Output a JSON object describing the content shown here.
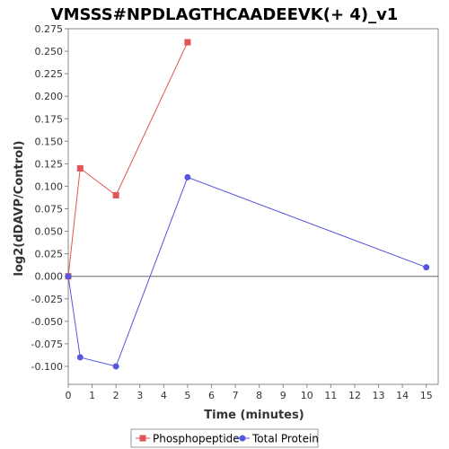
{
  "chart_data": {
    "type": "line",
    "title": "VMSSS#NPDLAGTHCAADEEVK(+ 4)_v1",
    "xlabel": "Time (minutes)",
    "ylabel": "log2(dDAVP/Control)",
    "xlim": [
      0,
      15.5
    ],
    "ylim": [
      -0.12,
      0.275
    ],
    "x_ticks": [
      "0",
      "1",
      "2",
      "3",
      "4",
      "5",
      "6",
      "7",
      "8",
      "9",
      "10",
      "11",
      "12",
      "13",
      "14",
      "15"
    ],
    "y_ticks": [
      "0.275",
      "0.250",
      "0.225",
      "0.200",
      "0.175",
      "0.150",
      "0.125",
      "0.100",
      "0.075",
      "0.050",
      "0.025",
      "0.000",
      "-0.025",
      "-0.050",
      "-0.075",
      "-0.100"
    ],
    "grid": false,
    "zero_line": true,
    "legend_position": "bottom",
    "series": [
      {
        "name": "Phosphopeptide",
        "color": "#e05555",
        "marker": "square",
        "points": [
          {
            "x": 0,
            "y": 0.0
          },
          {
            "x": 0.5,
            "y": 0.12
          },
          {
            "x": 2,
            "y": 0.09
          },
          {
            "x": 5,
            "y": 0.26
          }
        ]
      },
      {
        "name": "Total Protein",
        "color": "#5555e0",
        "marker": "circle",
        "points": [
          {
            "x": 0,
            "y": 0.0
          },
          {
            "x": 0.5,
            "y": -0.09
          },
          {
            "x": 2,
            "y": -0.1
          },
          {
            "x": 5,
            "y": 0.11
          },
          {
            "x": 15,
            "y": 0.01
          }
        ]
      }
    ]
  }
}
